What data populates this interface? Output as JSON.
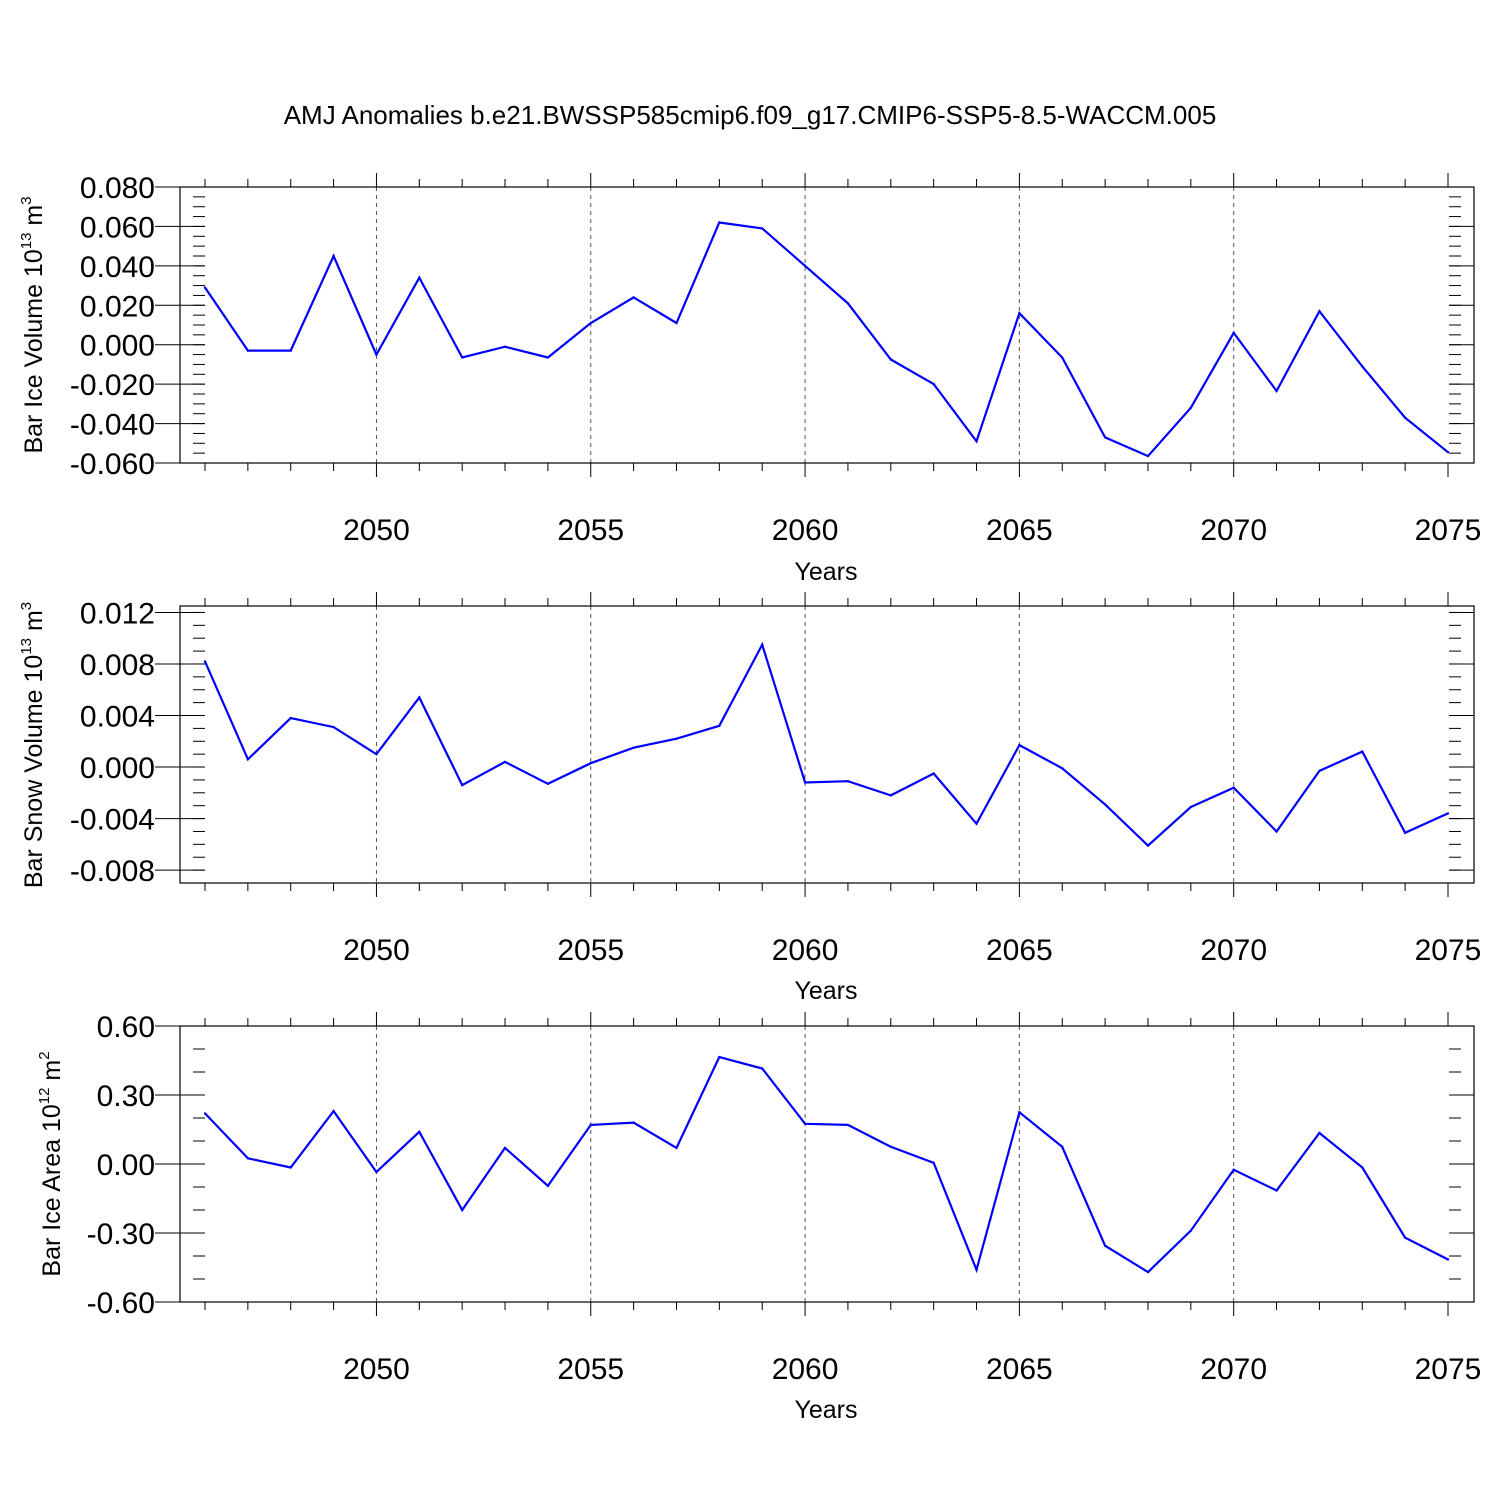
{
  "figure": {
    "title": "AMJ Anomalies b.e21.BWSSP585cmip6.f09_g17.CMIP6-SSP5-8.5-WACCM.005",
    "line_color": "#0000ff",
    "axis_color": "#000000"
  },
  "chart_data": [
    {
      "type": "line",
      "ylabel": {
        "base": "Bar Ice Volume 10",
        "exp": "13",
        "unit": " m",
        "unit_exp": "3"
      },
      "xlabel": "Years",
      "xlim": [
        2046,
        2075
      ],
      "ylim": [
        -0.06,
        0.08
      ],
      "xticks": [
        2050,
        2055,
        2060,
        2065,
        2070,
        2075
      ],
      "yticks": [
        -0.06,
        -0.04,
        -0.02,
        0.0,
        0.02,
        0.04,
        0.06,
        0.08
      ],
      "ytick_labels": [
        "-0.060",
        "-0.040",
        "-0.020",
        "0.000",
        "0.020",
        "0.040",
        "0.060",
        "0.080"
      ],
      "y_minor_step": 0.005,
      "grid": "vertical-dashed",
      "x": [
        2046,
        2047,
        2048,
        2049,
        2050,
        2051,
        2052,
        2053,
        2054,
        2055,
        2056,
        2057,
        2058,
        2059,
        2060,
        2061,
        2062,
        2063,
        2064,
        2065,
        2066,
        2067,
        2068,
        2069,
        2070,
        2071,
        2072,
        2073,
        2074,
        2075
      ],
      "values": [
        0.029,
        -0.003,
        -0.003,
        0.045,
        -0.005,
        0.034,
        -0.0065,
        -0.001,
        -0.0065,
        0.011,
        0.024,
        0.011,
        0.062,
        0.059,
        0.04,
        0.021,
        -0.0075,
        -0.02,
        -0.049,
        0.016,
        -0.0065,
        -0.047,
        -0.0565,
        -0.032,
        0.006,
        -0.0235,
        0.017,
        -0.011,
        -0.037,
        -0.0545
      ]
    },
    {
      "type": "line",
      "ylabel": {
        "base": "Bar Snow Volume 10",
        "exp": "13",
        "unit": " m",
        "unit_exp": "3"
      },
      "xlabel": "Years",
      "xlim": [
        2046,
        2075
      ],
      "ylim": [
        -0.009,
        0.0125
      ],
      "xticks": [
        2050,
        2055,
        2060,
        2065,
        2070,
        2075
      ],
      "yticks": [
        -0.008,
        -0.004,
        0.0,
        0.004,
        0.008,
        0.012
      ],
      "ytick_labels": [
        "-0.008",
        "-0.004",
        "0.000",
        "0.004",
        "0.008",
        "0.012"
      ],
      "y_minor_step": 0.001,
      "grid": "vertical-dashed",
      "x": [
        2046,
        2047,
        2048,
        2049,
        2050,
        2051,
        2052,
        2053,
        2054,
        2055,
        2056,
        2057,
        2058,
        2059,
        2060,
        2061,
        2062,
        2063,
        2064,
        2065,
        2066,
        2067,
        2068,
        2069,
        2070,
        2071,
        2072,
        2073,
        2074,
        2075
      ],
      "values": [
        0.0082,
        0.0006,
        0.0038,
        0.0031,
        0.001,
        0.0054,
        -0.0014,
        0.0004,
        -0.0013,
        0.0003,
        0.0015,
        0.0022,
        0.0032,
        0.0095,
        -0.0012,
        -0.0011,
        -0.0022,
        -0.0005,
        -0.0044,
        0.0017,
        -0.0001,
        -0.0029,
        -0.0061,
        -0.0031,
        -0.0016,
        -0.005,
        -0.0003,
        0.0012,
        -0.0051,
        -0.0036
      ]
    },
    {
      "type": "line",
      "ylabel": {
        "base": "Bar Ice Area 10",
        "exp": "12",
        "unit": " m",
        "unit_exp": "2"
      },
      "xlabel": "Years",
      "xlim": [
        2046,
        2075
      ],
      "ylim": [
        -0.6,
        0.6
      ],
      "xticks": [
        2050,
        2055,
        2060,
        2065,
        2070,
        2075
      ],
      "yticks": [
        -0.6,
        -0.3,
        0.0,
        0.3,
        0.6
      ],
      "ytick_labels": [
        "-0.60",
        "-0.30",
        "0.00",
        "0.30",
        "0.60"
      ],
      "y_minor_step": 0.1,
      "grid": "vertical-dashed",
      "x": [
        2046,
        2047,
        2048,
        2049,
        2050,
        2051,
        2052,
        2053,
        2054,
        2055,
        2056,
        2057,
        2058,
        2059,
        2060,
        2061,
        2062,
        2063,
        2064,
        2065,
        2066,
        2067,
        2068,
        2069,
        2070,
        2071,
        2072,
        2073,
        2074,
        2075
      ],
      "values": [
        0.22,
        0.025,
        -0.015,
        0.23,
        -0.035,
        0.14,
        -0.2,
        0.07,
        -0.095,
        0.17,
        0.18,
        0.07,
        0.465,
        0.415,
        0.175,
        0.17,
        0.075,
        0.005,
        -0.46,
        0.225,
        0.075,
        -0.355,
        -0.47,
        -0.29,
        -0.025,
        -0.115,
        0.135,
        -0.015,
        -0.32,
        -0.415
      ]
    }
  ]
}
